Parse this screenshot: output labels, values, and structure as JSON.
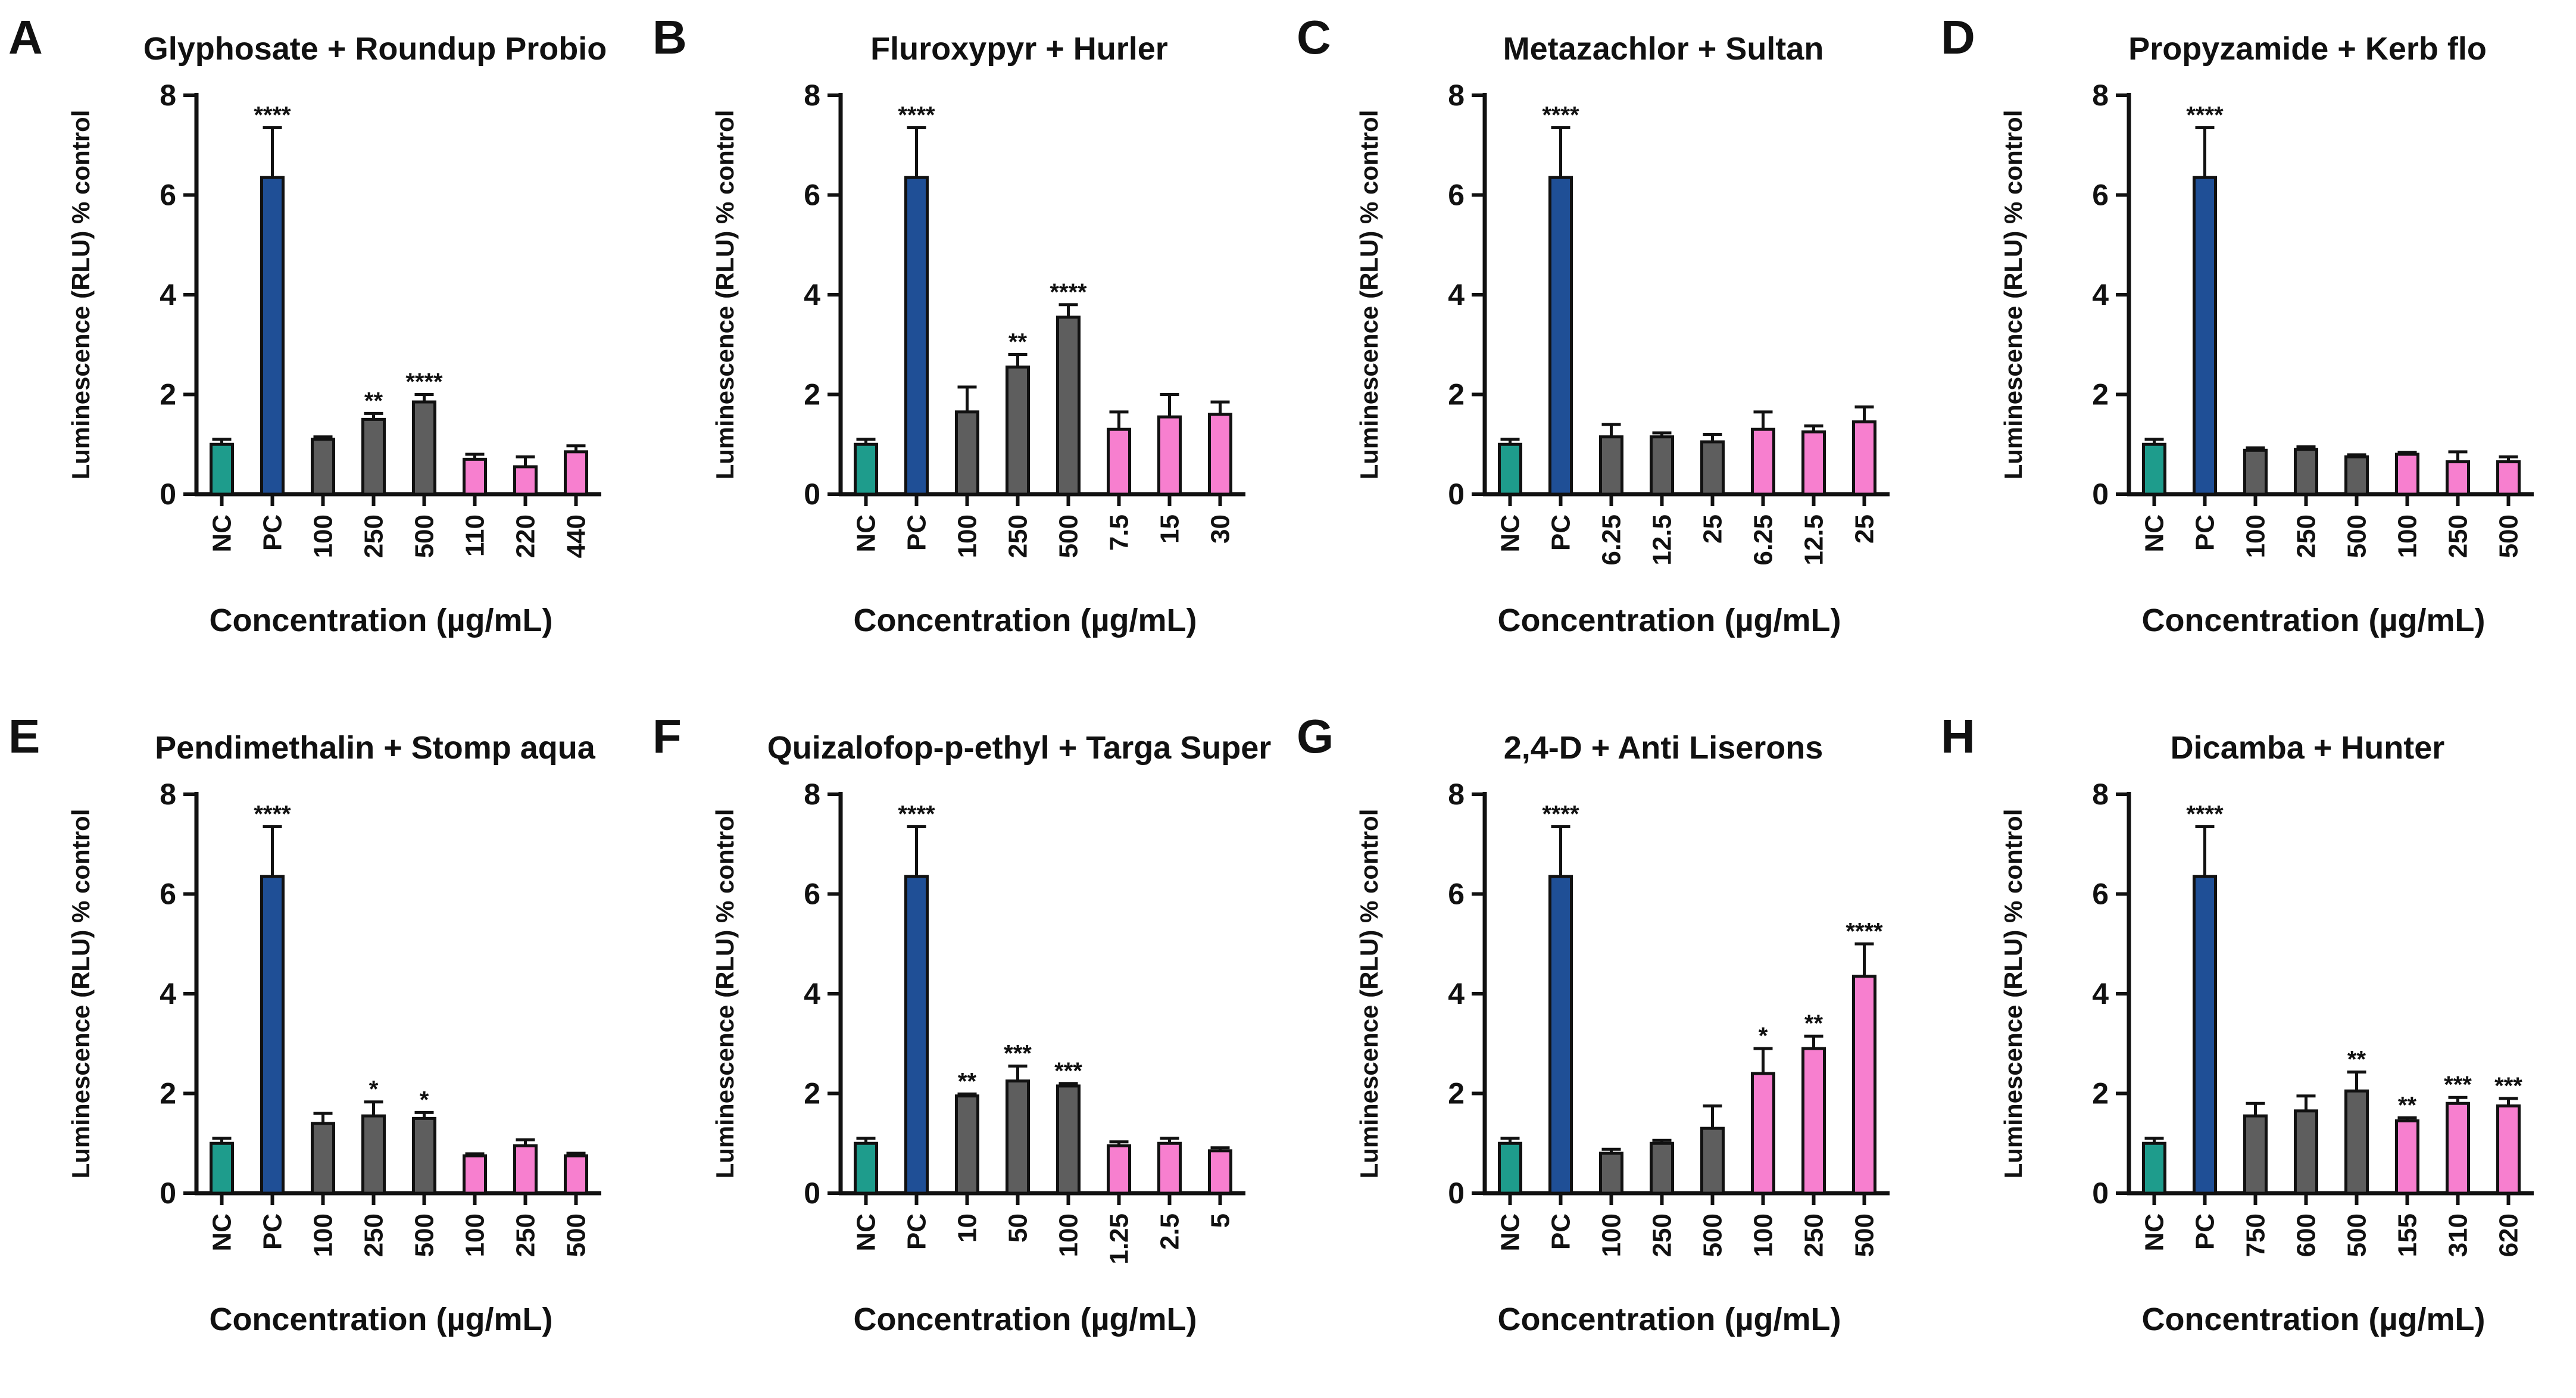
{
  "colors": {
    "NC": "#1e9c8c",
    "PC": "#1f4f96",
    "active": "#5e5e5e",
    "formulation": "#f77fcf"
  },
  "chart_data": [
    {
      "type": "bar",
      "panel": "A",
      "title": "Glyphosate + Roundup Probio",
      "xlabel": "Concentration (µg/mL)",
      "ylabel": "Luminescence (RLU) % control",
      "ylim": [
        0,
        8
      ],
      "yticks": [
        "0",
        "2",
        "4",
        "6",
        "8"
      ],
      "categories": [
        "NC",
        "PC",
        "100",
        "250",
        "500",
        "110",
        "220",
        "440"
      ],
      "groups": [
        "NC",
        "PC",
        "active",
        "active",
        "active",
        "formulation",
        "formulation",
        "formulation"
      ],
      "values": [
        1.0,
        6.35,
        1.1,
        1.5,
        1.85,
        0.7,
        0.55,
        0.85
      ],
      "errors": [
        0.1,
        1.0,
        0.05,
        0.12,
        0.15,
        0.1,
        0.2,
        0.12
      ],
      "significance": [
        "",
        "****",
        "",
        "**",
        "****",
        "",
        "",
        ""
      ]
    },
    {
      "type": "bar",
      "panel": "B",
      "title": "Fluroxypyr + Hurler",
      "xlabel": "Concentration (µg/mL)",
      "ylabel": "Luminescence (RLU) % control",
      "ylim": [
        0,
        8
      ],
      "yticks": [
        "0",
        "2",
        "4",
        "6",
        "8"
      ],
      "categories": [
        "NC",
        "PC",
        "100",
        "250",
        "500",
        "7.5",
        "15",
        "30"
      ],
      "groups": [
        "NC",
        "PC",
        "active",
        "active",
        "active",
        "formulation",
        "formulation",
        "formulation"
      ],
      "values": [
        1.0,
        6.35,
        1.65,
        2.55,
        3.55,
        1.3,
        1.55,
        1.6
      ],
      "errors": [
        0.1,
        1.0,
        0.5,
        0.25,
        0.25,
        0.35,
        0.45,
        0.25
      ],
      "significance": [
        "",
        "****",
        "",
        "**",
        "****",
        "",
        "",
        ""
      ]
    },
    {
      "type": "bar",
      "panel": "C",
      "title": "Metazachlor + Sultan",
      "xlabel": "Concentration (µg/mL)",
      "ylabel": "Luminescence (RLU) % control",
      "ylim": [
        0,
        8
      ],
      "yticks": [
        "0",
        "2",
        "4",
        "6",
        "8"
      ],
      "categories": [
        "NC",
        "PC",
        "6.25",
        "12.5",
        "25",
        "6.25",
        "12.5",
        "25"
      ],
      "groups": [
        "NC",
        "PC",
        "active",
        "active",
        "active",
        "formulation",
        "formulation",
        "formulation"
      ],
      "values": [
        1.0,
        6.35,
        1.15,
        1.15,
        1.05,
        1.3,
        1.25,
        1.45
      ],
      "errors": [
        0.1,
        1.0,
        0.25,
        0.08,
        0.15,
        0.35,
        0.12,
        0.3
      ],
      "significance": [
        "",
        "****",
        "",
        "",
        "",
        "",
        "",
        ""
      ]
    },
    {
      "type": "bar",
      "panel": "D",
      "title": "Propyzamide + Kerb flo",
      "xlabel": "Concentration (µg/mL)",
      "ylabel": "Luminescence (RLU) % control",
      "ylim": [
        0,
        8
      ],
      "yticks": [
        "0",
        "2",
        "4",
        "6",
        "8"
      ],
      "categories": [
        "NC",
        "PC",
        "100",
        "250",
        "500",
        "100",
        "250",
        "500"
      ],
      "groups": [
        "NC",
        "PC",
        "active",
        "active",
        "active",
        "formulation",
        "formulation",
        "formulation"
      ],
      "values": [
        1.0,
        6.35,
        0.88,
        0.9,
        0.75,
        0.8,
        0.65,
        0.65
      ],
      "errors": [
        0.1,
        1.0,
        0.05,
        0.05,
        0.04,
        0.04,
        0.2,
        0.1
      ],
      "significance": [
        "",
        "****",
        "",
        "",
        "",
        "",
        "",
        ""
      ]
    },
    {
      "type": "bar",
      "panel": "E",
      "title": "Pendimethalin + Stomp aqua",
      "xlabel": "Concentration (µg/mL)",
      "ylabel": "Luminescence (RLU) % control",
      "ylim": [
        0,
        8
      ],
      "yticks": [
        "0",
        "2",
        "4",
        "6",
        "8"
      ],
      "categories": [
        "NC",
        "PC",
        "100",
        "250",
        "500",
        "100",
        "250",
        "500"
      ],
      "groups": [
        "NC",
        "PC",
        "active",
        "active",
        "active",
        "formulation",
        "formulation",
        "formulation"
      ],
      "values": [
        1.0,
        6.35,
        1.4,
        1.55,
        1.5,
        0.75,
        0.95,
        0.75
      ],
      "errors": [
        0.1,
        1.0,
        0.2,
        0.28,
        0.12,
        0.04,
        0.12,
        0.05
      ],
      "significance": [
        "",
        "****",
        "",
        "*",
        "*",
        "",
        "",
        ""
      ]
    },
    {
      "type": "bar",
      "panel": "F",
      "title": "Quizalofop-p-ethyl + Targa Super",
      "xlabel": "Concentration (µg/mL)",
      "ylabel": "Luminescence (RLU) % control",
      "ylim": [
        0,
        8
      ],
      "yticks": [
        "0",
        "2",
        "4",
        "6",
        "8"
      ],
      "categories": [
        "NC",
        "PC",
        "10",
        "50",
        "100",
        "1.25",
        "2.5",
        "5"
      ],
      "groups": [
        "NC",
        "PC",
        "active",
        "active",
        "active",
        "formulation",
        "formulation",
        "formulation"
      ],
      "values": [
        1.0,
        6.35,
        1.95,
        2.25,
        2.15,
        0.95,
        1.0,
        0.85
      ],
      "errors": [
        0.1,
        1.0,
        0.04,
        0.3,
        0.05,
        0.08,
        0.1,
        0.06
      ],
      "significance": [
        "",
        "****",
        "**",
        "***",
        "***",
        "",
        "",
        ""
      ]
    },
    {
      "type": "bar",
      "panel": "G",
      "title": "2,4-D + Anti Liserons",
      "xlabel": "Concentration (µg/mL)",
      "ylabel": "Luminescence (RLU) % control",
      "ylim": [
        0,
        8
      ],
      "yticks": [
        "0",
        "2",
        "4",
        "6",
        "8"
      ],
      "categories": [
        "NC",
        "PC",
        "100",
        "250",
        "500",
        "100",
        "250",
        "500"
      ],
      "groups": [
        "NC",
        "PC",
        "active",
        "active",
        "active",
        "formulation",
        "formulation",
        "formulation"
      ],
      "values": [
        1.0,
        6.35,
        0.8,
        1.0,
        1.3,
        2.4,
        2.9,
        4.35
      ],
      "errors": [
        0.1,
        1.0,
        0.08,
        0.06,
        0.45,
        0.5,
        0.25,
        0.65
      ],
      "significance": [
        "",
        "****",
        "",
        "",
        "",
        "*",
        "**",
        "****"
      ]
    },
    {
      "type": "bar",
      "panel": "H",
      "title": "Dicamba + Hunter",
      "xlabel": "Concentration (µg/mL)",
      "ylabel": "Luminescence (RLU) % control",
      "ylim": [
        0,
        8
      ],
      "yticks": [
        "0",
        "2",
        "4",
        "6",
        "8"
      ],
      "categories": [
        "NC",
        "PC",
        "750",
        "600",
        "500",
        "155",
        "310",
        "620"
      ],
      "groups": [
        "NC",
        "PC",
        "active",
        "active",
        "active",
        "formulation",
        "formulation",
        "formulation"
      ],
      "values": [
        1.0,
        6.35,
        1.55,
        1.65,
        2.05,
        1.45,
        1.8,
        1.75
      ],
      "errors": [
        0.1,
        1.0,
        0.25,
        0.3,
        0.38,
        0.06,
        0.12,
        0.15
      ],
      "significance": [
        "",
        "****",
        "",
        "",
        "**",
        "**",
        "***",
        "***"
      ]
    }
  ]
}
